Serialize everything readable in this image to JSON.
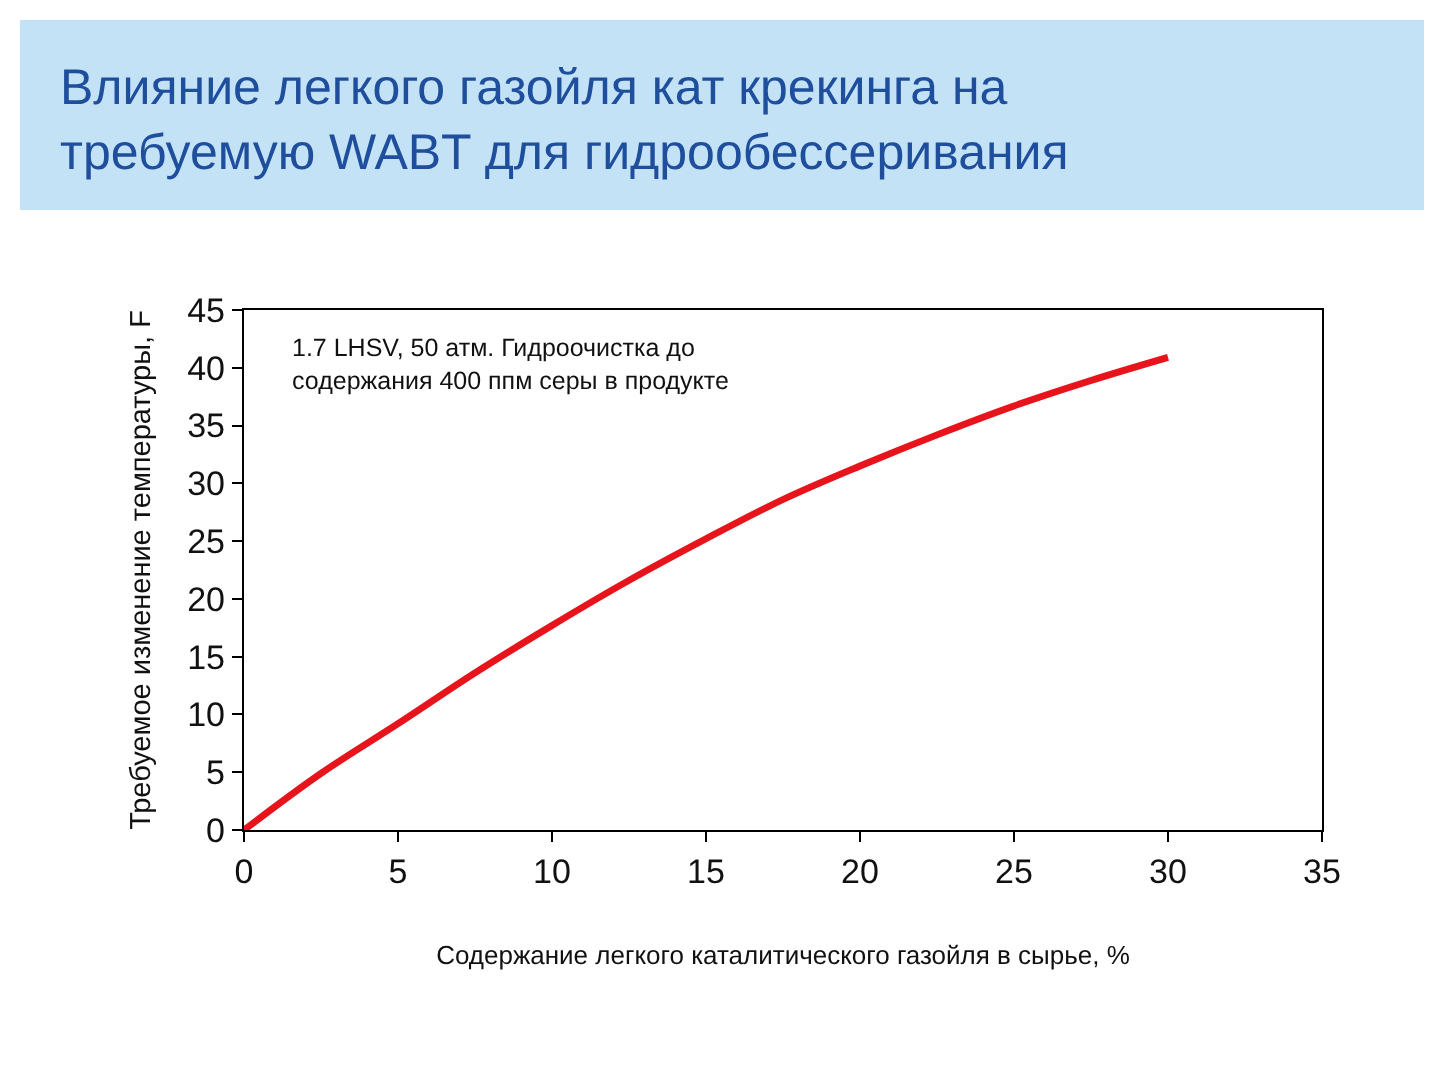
{
  "chart_data": {
    "type": "line",
    "title": "Влияние легкого газойля кат крекинга на\nтребуемую WABT для гидрообессеривания",
    "xlabel": "Содержание легкого каталитического газойля в сырье, %",
    "ylabel": "Требуемое изменение температуры, F",
    "annotations": [
      "1.7 LHSV, 50 атм. Гидроочистка до\nсодержания 400 ппм серы в продукте"
    ],
    "x": [
      0,
      2.5,
      5,
      7.5,
      10,
      12.5,
      15,
      17.5,
      20,
      22.5,
      25,
      27.5,
      30
    ],
    "series": [
      {
        "color": "#e8141c",
        "values": [
          0,
          4.9,
          9.2,
          13.6,
          17.7,
          21.6,
          25.2,
          28.6,
          31.5,
          34.2,
          36.7,
          38.9,
          40.9
        ]
      }
    ],
    "xlim": [
      0,
      35
    ],
    "ylim": [
      0,
      45
    ],
    "xticks": [
      0,
      5,
      10,
      15,
      20,
      25,
      30,
      35
    ],
    "yticks": [
      0,
      5,
      10,
      15,
      20,
      25,
      30,
      35,
      40,
      45
    ],
    "grid": false,
    "marker": "none",
    "line_style": "solid"
  }
}
